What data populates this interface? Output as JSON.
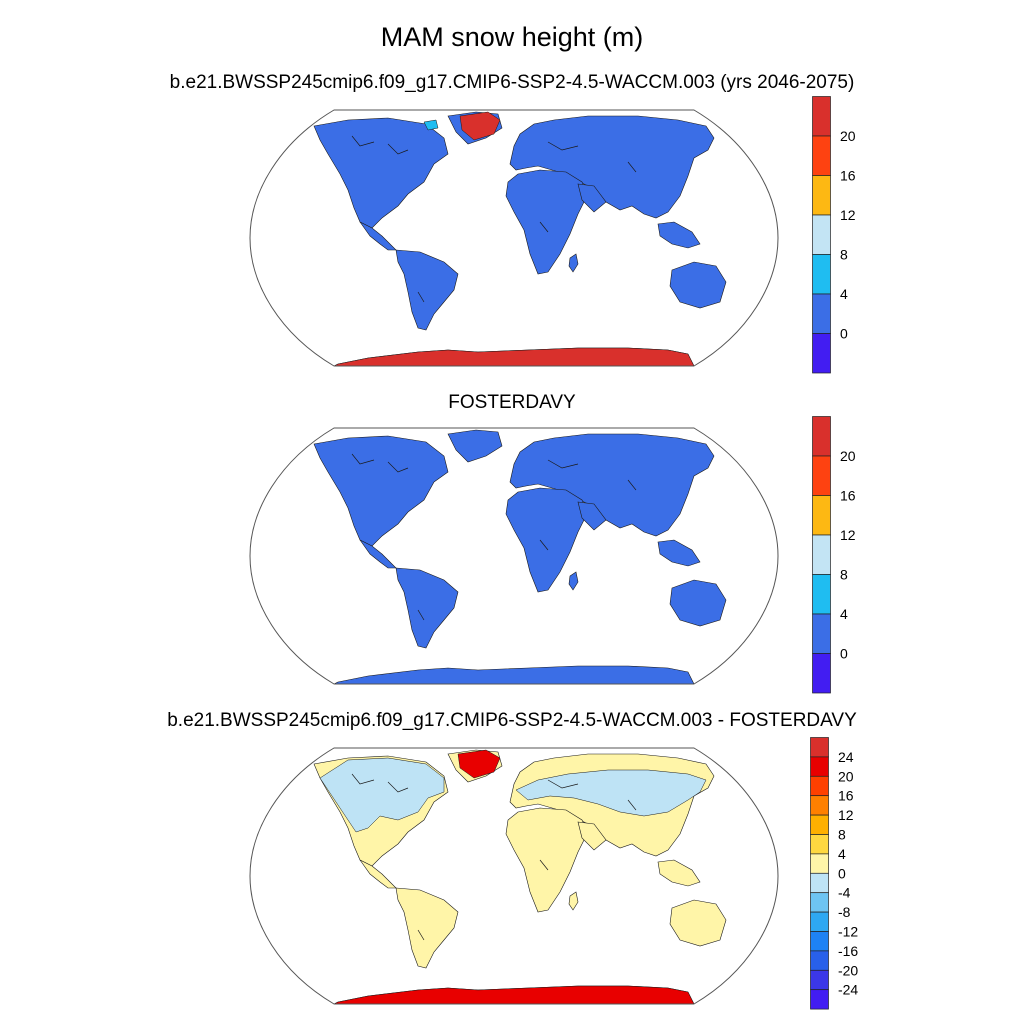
{
  "title": "MAM snow height (m)",
  "panels": [
    {
      "id": "model",
      "title": "b.e21.BWSSP245cmip6.f09_g17.CMIP6-SSP2-4.5-WACCM.003 (yrs 2046-2075)",
      "colorbar_ticks": [
        "20",
        "16",
        "12",
        "8",
        "4",
        "0"
      ],
      "colorbar_colors": [
        "#d9302c",
        "#fe4211",
        "#fdb813",
        "#c3e4f4",
        "#1fbdf1",
        "#3b6ee6",
        "#421df2"
      ]
    },
    {
      "id": "obs",
      "title": "FOSTERDAVY",
      "colorbar_ticks": [
        "20",
        "16",
        "12",
        "8",
        "4",
        "0"
      ],
      "colorbar_colors": [
        "#d9302c",
        "#fe4211",
        "#fdb813",
        "#c3e4f4",
        "#1fbdf1",
        "#3b6ee6",
        "#421df2"
      ]
    },
    {
      "id": "diff",
      "title": "b.e21.BWSSP245cmip6.f09_g17.CMIP6-SSP2-4.5-WACCM.003 - FOSTERDAVY",
      "colorbar_ticks": [
        "24",
        "20",
        "16",
        "12",
        "8",
        "4",
        "0",
        "-4",
        "-8",
        "-12",
        "-16",
        "-20",
        "-24"
      ],
      "colorbar_colors": [
        "#d9302c",
        "#e80000",
        "#ff4000",
        "#ff8000",
        "#ffb000",
        "#ffd840",
        "#fff5a8",
        "#bee3f5",
        "#6ec4f2",
        "#2ea8f2",
        "#1e82f4",
        "#2860ea",
        "#3b37e8",
        "#421df2"
      ]
    }
  ]
}
